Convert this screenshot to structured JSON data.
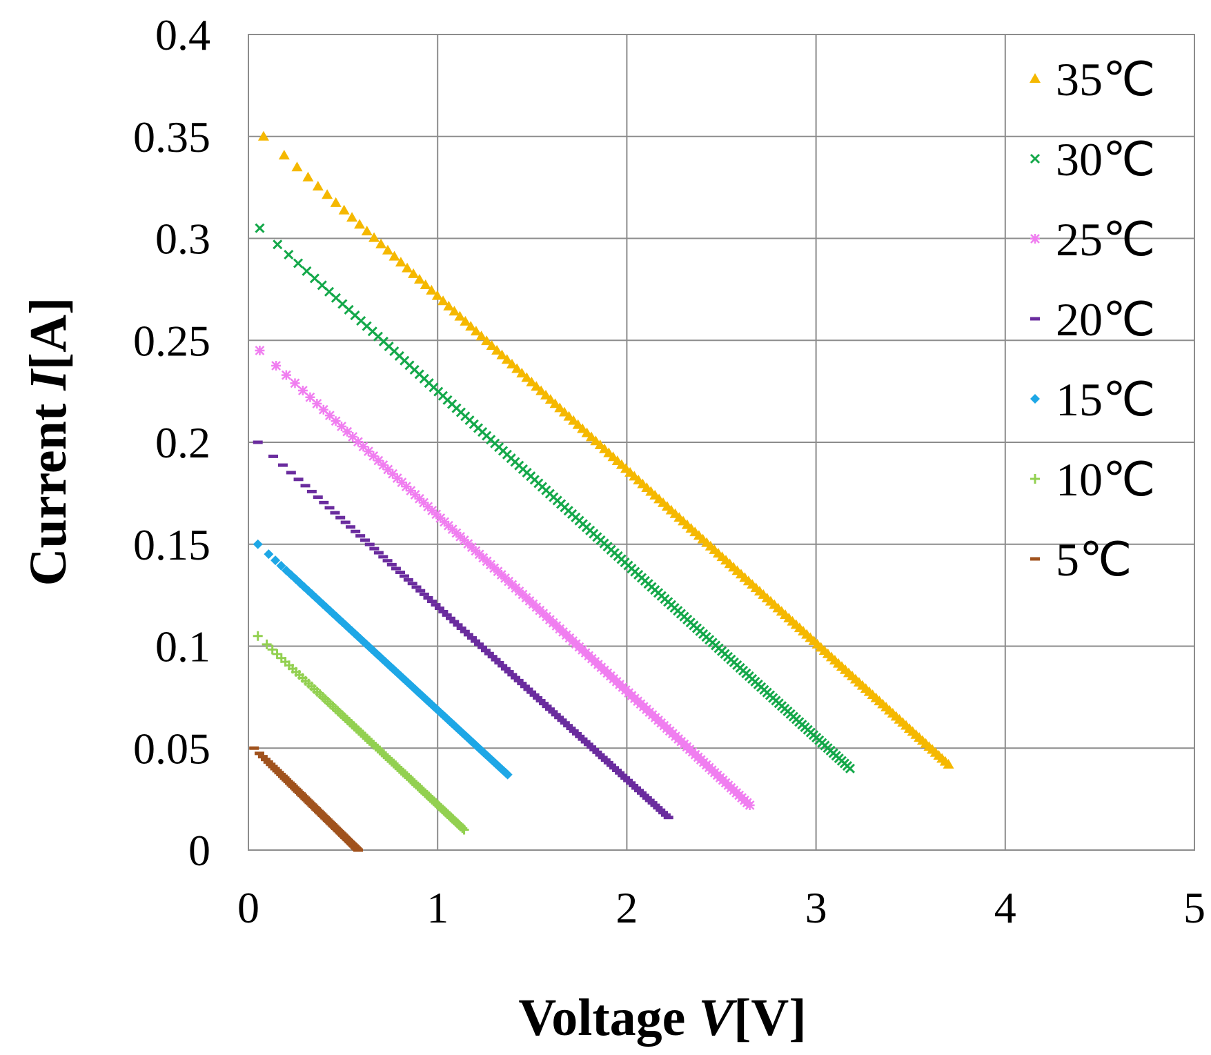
{
  "chart_data": {
    "type": "scatter",
    "title": "",
    "xlabel": "Voltage V[V]",
    "xlabel_parts": {
      "prefix": "Voltage ",
      "var": "V",
      "suffix": "[V]"
    },
    "ylabel": "Current I[A]",
    "ylabel_parts": {
      "prefix": "Current ",
      "var": "I",
      "suffix": "[A]"
    },
    "xlim": [
      0,
      5
    ],
    "ylim": [
      0,
      0.4
    ],
    "x_ticks": [
      0,
      1,
      2,
      3,
      4,
      5
    ],
    "x_tick_labels": [
      "0",
      "1",
      "2",
      "3",
      "4",
      "5"
    ],
    "y_ticks": [
      0,
      0.05,
      0.1,
      0.15,
      0.2,
      0.25,
      0.3,
      0.35,
      0.4
    ],
    "y_tick_labels": [
      "0",
      "0.05",
      "0.1",
      "0.15",
      "0.2",
      "0.25",
      "0.3",
      "0.35",
      "0.4"
    ],
    "grid": true,
    "legend_position": "right",
    "series": [
      {
        "name": "35℃",
        "label": "35℃",
        "color": "#f5b800",
        "marker": "triangle",
        "x_range": [
          0.08,
          3.7
        ],
        "y_range": [
          0.35,
          0.042
        ],
        "points": 150
      },
      {
        "name": "30℃",
        "label": "30℃",
        "color": "#14a84a",
        "marker": "x",
        "x_range": [
          0.06,
          3.18
        ],
        "y_range": [
          0.305,
          0.04
        ],
        "points": 150
      },
      {
        "name": "25℃",
        "label": "25℃",
        "color": "#f07ef0",
        "marker": "star",
        "x_range": [
          0.06,
          2.65
        ],
        "y_range": [
          0.245,
          0.022
        ],
        "points": 130
      },
      {
        "name": "20℃",
        "label": "20℃",
        "color": "#6a2c9e",
        "marker": "dash",
        "x_range": [
          0.05,
          2.22
        ],
        "y_range": [
          0.2,
          0.016
        ],
        "points": 110
      },
      {
        "name": "15℃",
        "label": "15℃",
        "color": "#1ea7e6",
        "marker": "diamond",
        "x_range": [
          0.05,
          1.37
        ],
        "y_range": [
          0.15,
          0.037
        ],
        "points": 90
      },
      {
        "name": "10℃",
        "label": "10℃",
        "color": "#92d050",
        "marker": "plus",
        "x_range": [
          0.05,
          1.14
        ],
        "y_range": [
          0.105,
          0.01
        ],
        "points": 90
      },
      {
        "name": "5℃",
        "label": "5℃",
        "color": "#a0521d",
        "marker": "dash",
        "x_range": [
          0.03,
          0.58
        ],
        "y_range": [
          0.05,
          0.0
        ],
        "points": 70
      }
    ]
  }
}
